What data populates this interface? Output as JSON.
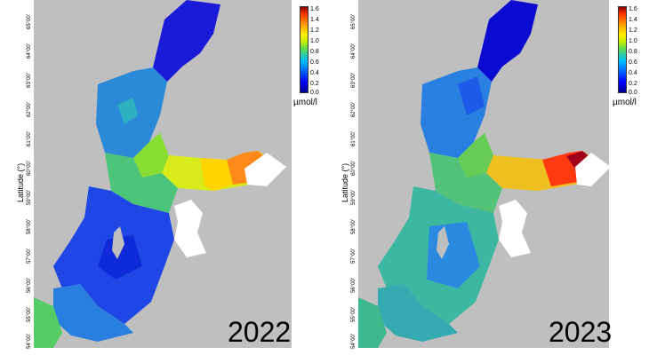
{
  "panels": [
    {
      "year": "2022",
      "unit": "µmol/l",
      "ylabel": "Latitude (°)",
      "colorbar_ticks": [
        "1.6",
        "1.4",
        "1.2",
        "1.0",
        "0.8",
        "0.6",
        "0.4",
        "0.2",
        "0.0"
      ],
      "lat_ticks": [
        "65°00'",
        "64°00'",
        "63°00'",
        "62°00'",
        "61°00'",
        "60°00'",
        "59°00'",
        "58°00'",
        "57°00'",
        "56°00'",
        "55°00'",
        "54°00'"
      ]
    },
    {
      "year": "2023",
      "unit": "µmol/l",
      "ylabel": "Latitude (°)",
      "colorbar_ticks": [
        "1.6",
        "1.4",
        "1.2",
        "1.0",
        "0.8",
        "0.6",
        "0.4",
        "0.2",
        "0.0"
      ],
      "lat_ticks": [
        "65°00'",
        "64°00'",
        "63°00'",
        "62°00'",
        "61°00'",
        "60°00'",
        "59°00'",
        "58°00'",
        "57°00'",
        "56°00'",
        "55°00'",
        "54°00'"
      ]
    }
  ],
  "colors": {
    "land": "#bfbfbf",
    "mask": "#ffffff",
    "scale_min": "#00008f",
    "scale_max": "#8b0000"
  }
}
